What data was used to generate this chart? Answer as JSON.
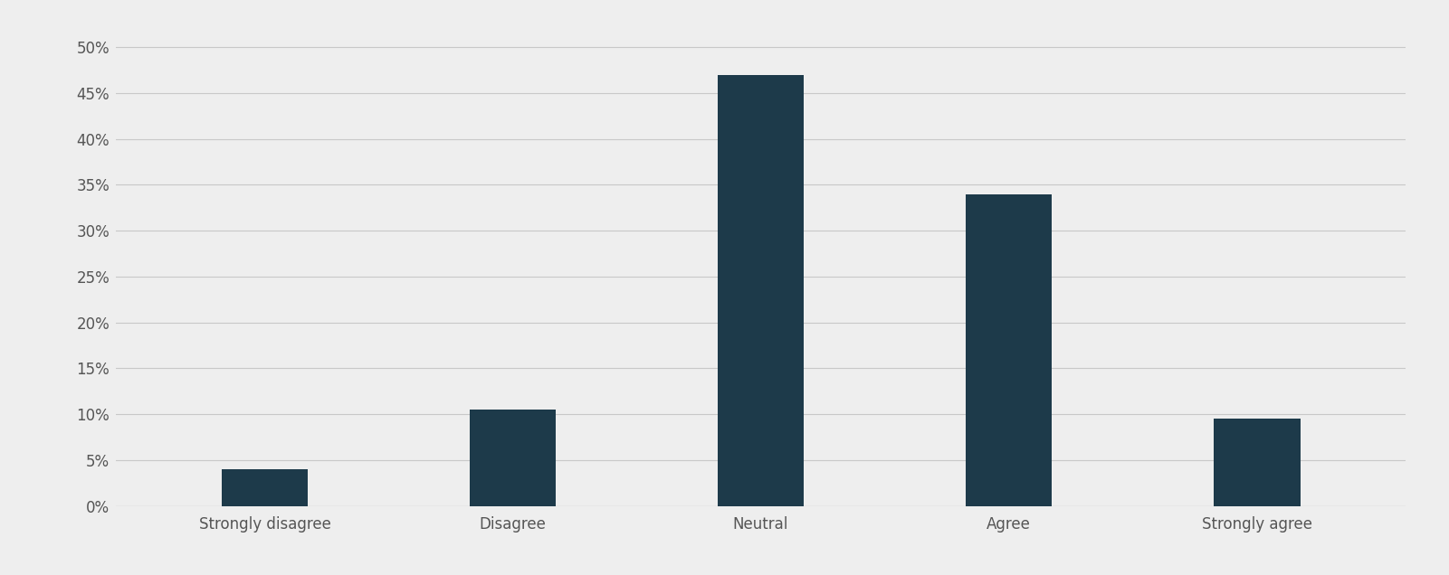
{
  "categories": [
    "Strongly disagree",
    "Disagree",
    "Neutral",
    "Agree",
    "Strongly agree"
  ],
  "values": [
    0.04,
    0.105,
    0.47,
    0.34,
    0.095
  ],
  "bar_color": "#1d3a4a",
  "background_color": "#eeeeee",
  "ylim": [
    0,
    0.52
  ],
  "yticks": [
    0.0,
    0.05,
    0.1,
    0.15,
    0.2,
    0.25,
    0.3,
    0.35,
    0.4,
    0.45,
    0.5
  ],
  "bar_width": 0.35,
  "grid_color": "#c8c8c8",
  "tick_label_fontsize": 12,
  "ytick_label_fontsize": 12
}
